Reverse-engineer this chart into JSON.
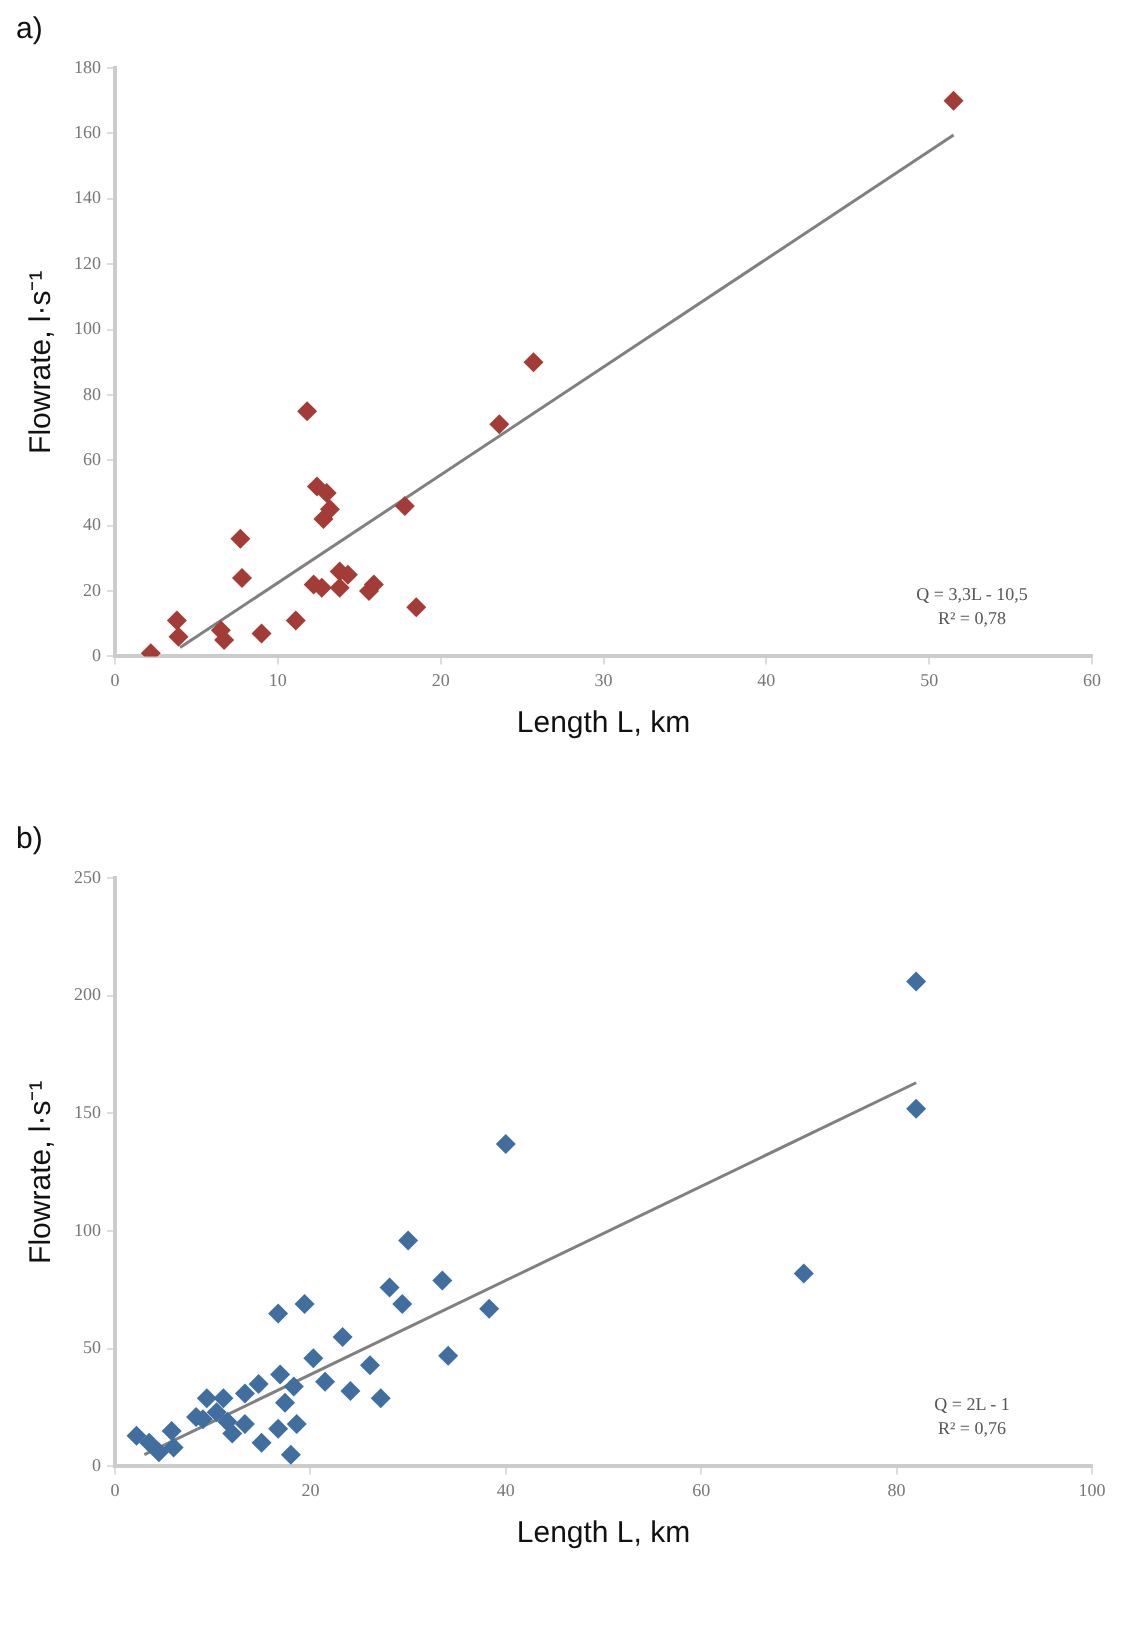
{
  "chart_data": [
    {
      "type": "scatter",
      "title": "a)",
      "xlabel": "Length L, km",
      "ylabel": "Flowrate, l·s⁻¹",
      "xlim": [
        0,
        60
      ],
      "xticks": [
        0,
        10,
        20,
        30,
        40,
        50,
        60
      ],
      "ylim": [
        0,
        180
      ],
      "yticks": [
        0,
        20,
        40,
        60,
        80,
        100,
        120,
        140,
        160,
        180
      ],
      "grid": false,
      "legend": false,
      "annotations": [
        "Q = 3,3L - 10,5",
        "R² = 0,78"
      ],
      "series": [
        {
          "marker": "diamond",
          "color": "#a33c36",
          "x": [
            2.2,
            3.8,
            3.9,
            6.5,
            6.7,
            7.7,
            7.8,
            9,
            11.1,
            11.8,
            12.4,
            13,
            13.2,
            12.8,
            12.2,
            12.7,
            13.8,
            14.3,
            13.8,
            15.6,
            15.9,
            17.8,
            18.5,
            23.6,
            25.7,
            51.5
          ],
          "values": [
            1,
            11,
            6,
            8,
            5,
            36,
            24,
            7,
            11,
            75,
            52,
            50,
            45,
            42,
            22,
            21,
            26,
            25,
            21,
            20,
            22,
            46,
            15,
            71,
            90,
            170
          ]
        },
        {
          "type": "line",
          "marker": "none",
          "color": "#808080",
          "x": [
            4,
            51.5
          ],
          "values": [
            2.7,
            159.5
          ]
        }
      ]
    },
    {
      "type": "scatter",
      "title": "b)",
      "xlabel": "Length L, km",
      "ylabel": "Flowrate, l·s⁻¹",
      "xlim": [
        0,
        100
      ],
      "xticks": [
        0,
        20,
        40,
        60,
        80,
        100
      ],
      "ylim": [
        0,
        250
      ],
      "yticks": [
        0,
        50,
        100,
        150,
        200,
        250
      ],
      "grid": false,
      "legend": false,
      "annotations": [
        "Q = 2L - 1",
        "R² = 0,76"
      ],
      "series": [
        {
          "marker": "diamond",
          "color": "#3f6e9f",
          "x": [
            40,
            30,
            33.5,
            38.3,
            34.1,
            28.1,
            29.4,
            23.3,
            26.1,
            27.2,
            24.1,
            16.7,
            19.4,
            20.3,
            16.9,
            21.5,
            18.3,
            17.4,
            14.7,
            13.3,
            18.6,
            16.7,
            11.1,
            9.4,
            8.3,
            10.4,
            11.5,
            13.3,
            5.8,
            2.2,
            18,
            6,
            9,
            12,
            15,
            3.5,
            4.5,
            82,
            82,
            70.5
          ],
          "values": [
            137,
            96,
            79,
            67,
            47,
            76,
            69,
            55,
            43,
            29,
            32,
            65,
            69,
            46,
            39,
            36,
            34,
            27,
            35,
            31,
            18,
            16,
            29,
            29,
            21,
            23,
            19,
            18,
            15,
            13,
            5,
            8,
            20,
            14,
            10,
            10,
            6,
            206,
            152,
            82
          ]
        },
        {
          "type": "line",
          "marker": "none",
          "color": "#808080",
          "x": [
            3,
            82
          ],
          "values": [
            5,
            163
          ]
        }
      ]
    }
  ]
}
